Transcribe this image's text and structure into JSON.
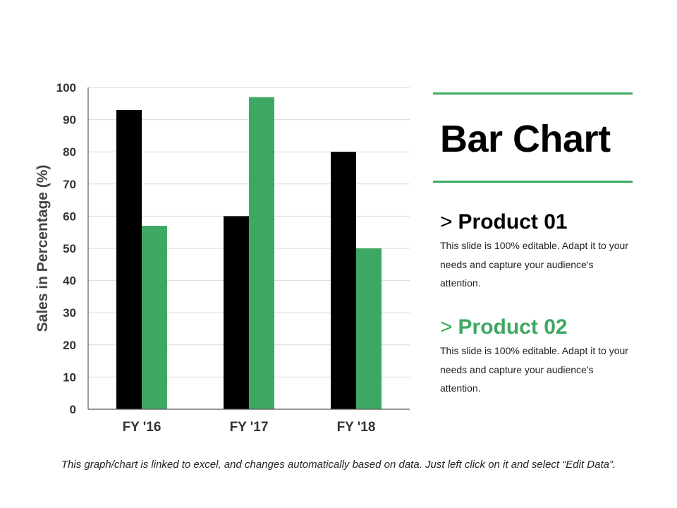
{
  "colors": {
    "accent": "#3DA862",
    "series_1": "#000000",
    "series_2": "#3DA862",
    "gridline": "#d9d9d9",
    "axis": "#595959"
  },
  "chart_data": {
    "type": "bar",
    "categories": [
      "FY '16",
      "FY '17",
      "FY '18"
    ],
    "series": [
      {
        "values": [
          93,
          60,
          80
        ],
        "color": "#000000"
      },
      {
        "values": [
          57,
          97,
          50
        ],
        "color": "#3DA862"
      }
    ],
    "title": "",
    "xlabel": "",
    "ylabel": "Sales in Percentage (%)",
    "ylim": [
      0,
      100
    ],
    "yticks": [
      0,
      10,
      20,
      30,
      40,
      50,
      60,
      70,
      80,
      90,
      100
    ],
    "grid": true,
    "legend": "none"
  },
  "panel": {
    "title": "Bar Chart",
    "products": [
      {
        "arrow": ">",
        "name": "Product 01",
        "desc": "This slide is 100% editable. Adapt it to your needs and capture your audience's attention."
      },
      {
        "arrow": ">",
        "name": "Product 02",
        "desc": "This slide is 100% editable. Adapt it to your needs and capture your audience's attention."
      }
    ]
  },
  "footnote": "This graph/chart is linked to excel, and changes automatically based on data. Just left click on it and select “Edit Data”."
}
